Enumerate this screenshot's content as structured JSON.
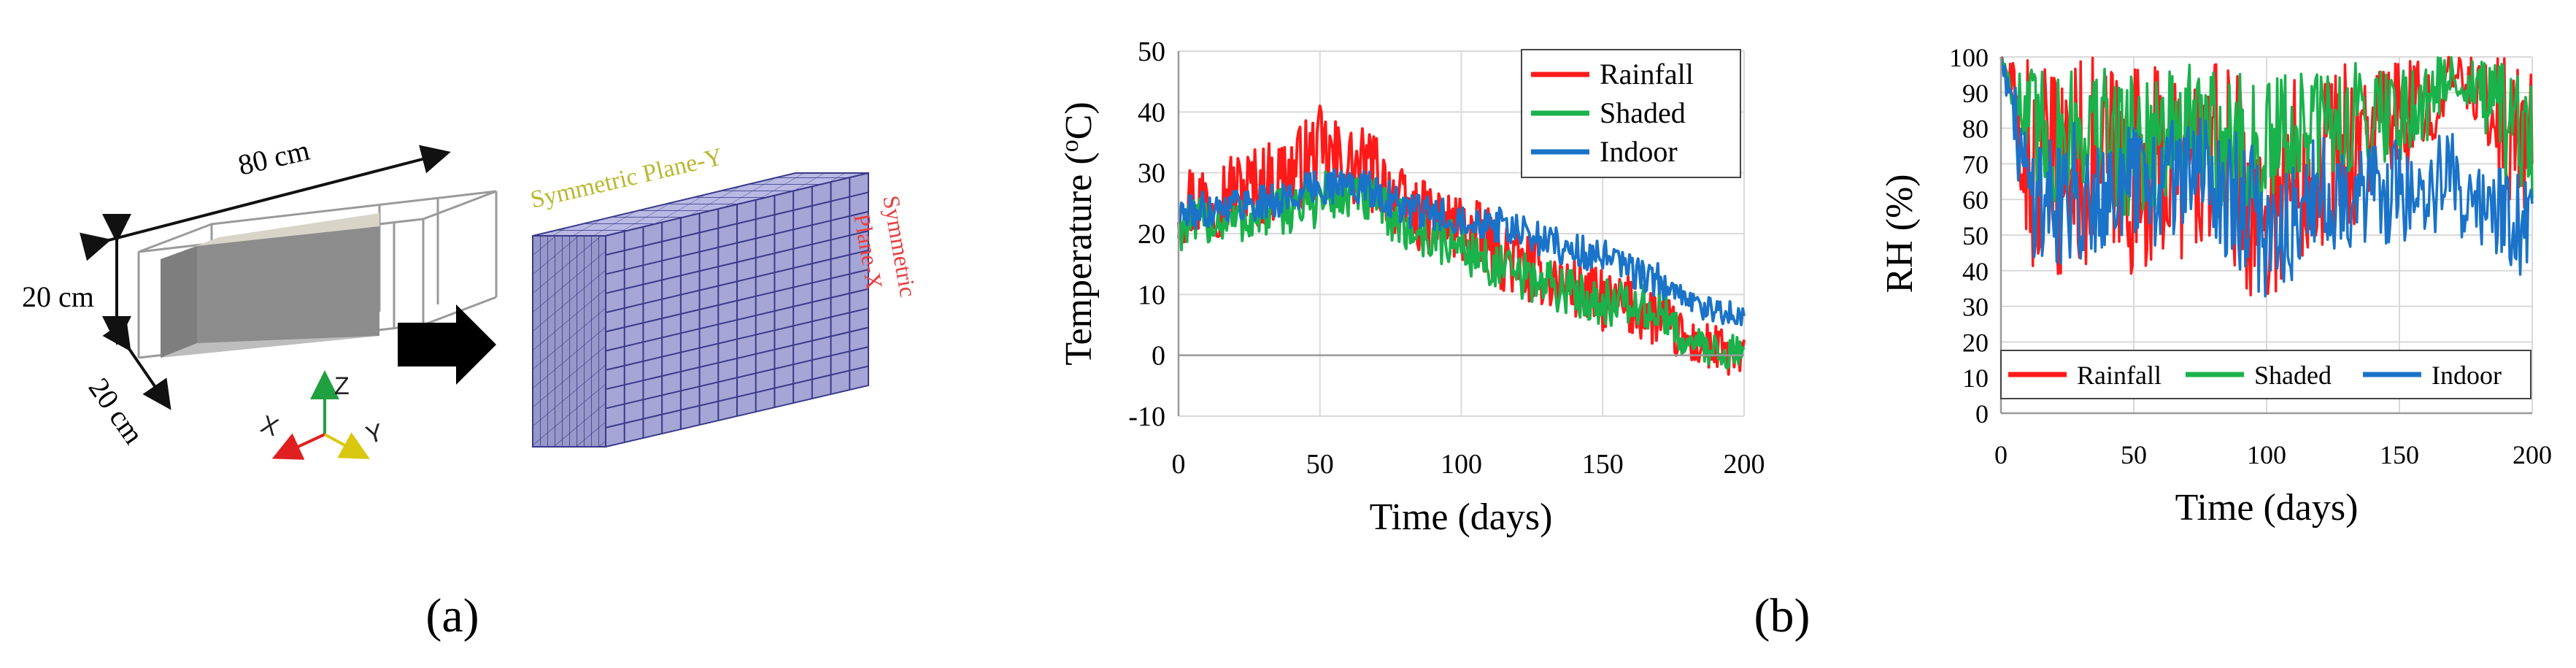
{
  "panel_a": {
    "label": "(a)",
    "dim_length": "80 cm",
    "dim_height": "20 cm",
    "dim_depth": "20 cm",
    "axis_x": "X",
    "axis_y": "Y",
    "axis_z": "Z",
    "plane_y_label": "Symmetric  Plane-Y",
    "plane_x_label_1": "Symmetric",
    "plane_x_label_2": "Plane-X",
    "colors": {
      "plane_y": "#b8b830",
      "plane_x": "#e84040",
      "mesh_face": "#a8a8d8",
      "mesh_line": "#3a3a8a",
      "solid": "#8a8a8a"
    }
  },
  "panel_b": {
    "label": "(b)"
  },
  "chart_data": [
    {
      "type": "line",
      "title": "",
      "xlabel": "Time (days)",
      "ylabel": "Temperature  (",
      "ylabel_sup": "o",
      "ylabel_unit": "C)",
      "xlim": [
        0,
        200
      ],
      "ylim": [
        -10,
        50
      ],
      "xticks": [
        0,
        50,
        100,
        150,
        200
      ],
      "yticks": [
        -10,
        0,
        10,
        20,
        30,
        40,
        50
      ],
      "grid": true,
      "legend_position": "top-right",
      "series": [
        {
          "name": "Rainfall",
          "color": "#ff1a1a",
          "x": [
            0,
            10,
            20,
            30,
            40,
            50,
            60,
            70,
            80,
            90,
            100,
            110,
            120,
            130,
            140,
            150,
            160,
            170,
            180,
            190,
            200
          ],
          "center": [
            25,
            26,
            27,
            28,
            30,
            33,
            31,
            30,
            24,
            22,
            21,
            18,
            15,
            13,
            11,
            9,
            8,
            6,
            2,
            1,
            -1
          ],
          "amplitude": [
            7,
            7,
            7,
            7,
            7,
            8,
            7,
            7,
            6,
            6,
            6,
            6,
            6,
            5,
            5,
            5,
            5,
            5,
            4,
            4,
            4
          ]
        },
        {
          "name": "Shaded",
          "color": "#1ab24b",
          "x": [
            0,
            10,
            20,
            30,
            40,
            50,
            60,
            70,
            80,
            90,
            100,
            110,
            120,
            130,
            140,
            150,
            160,
            170,
            180,
            190,
            200
          ],
          "center": [
            21,
            22,
            22,
            23,
            24,
            26,
            26,
            25,
            21,
            19,
            18,
            15,
            13,
            12,
            10,
            9,
            8,
            7,
            2,
            1,
            0
          ],
          "amplitude": [
            4,
            4,
            4,
            4,
            4,
            5,
            4,
            4,
            4,
            4,
            4,
            4,
            4,
            4,
            4,
            4,
            4,
            4,
            3,
            3,
            3
          ]
        },
        {
          "name": "Indoor",
          "color": "#1a73c8",
          "x": [
            0,
            10,
            20,
            30,
            40,
            50,
            60,
            70,
            80,
            90,
            100,
            110,
            120,
            130,
            140,
            150,
            160,
            170,
            180,
            190,
            200
          ],
          "center": [
            23,
            24,
            25,
            25,
            26,
            28,
            28,
            27,
            24,
            23,
            23,
            22,
            20,
            19,
            17,
            16,
            14,
            12,
            9,
            7,
            7
          ],
          "amplitude": [
            3,
            3,
            3,
            3,
            3,
            3,
            3,
            3,
            3,
            3,
            3,
            3,
            3,
            3,
            3,
            3,
            3,
            3,
            2,
            2,
            2
          ]
        }
      ]
    },
    {
      "type": "line",
      "title": "",
      "xlabel": "Time (days)",
      "ylabel": "RH (%)",
      "xlim": [
        0,
        200
      ],
      "ylim": [
        0,
        100
      ],
      "xticks": [
        0,
        50,
        100,
        150,
        200
      ],
      "yticks": [
        0,
        10,
        20,
        30,
        40,
        50,
        60,
        70,
        80,
        90,
        100
      ],
      "grid": true,
      "legend_position": "lower-center",
      "series": [
        {
          "name": "Rainfall",
          "color": "#ff1a1a",
          "x": [
            0,
            10,
            20,
            30,
            40,
            50,
            60,
            70,
            80,
            90,
            100,
            110,
            120,
            130,
            140,
            150,
            160,
            170,
            180,
            190,
            200
          ],
          "center": [
            100,
            70,
            65,
            70,
            72,
            68,
            70,
            70,
            70,
            68,
            55,
            68,
            72,
            75,
            80,
            82,
            85,
            95,
            90,
            80,
            75
          ],
          "amplitude": [
            0,
            30,
            30,
            30,
            28,
            30,
            28,
            28,
            28,
            30,
            30,
            28,
            25,
            25,
            20,
            18,
            15,
            5,
            10,
            20,
            20
          ]
        },
        {
          "name": "Shaded",
          "color": "#1ab24b",
          "x": [
            0,
            10,
            20,
            30,
            40,
            50,
            60,
            70,
            80,
            90,
            100,
            110,
            120,
            130,
            140,
            150,
            160,
            170,
            180,
            190,
            200
          ],
          "center": [
            100,
            80,
            75,
            80,
            78,
            75,
            78,
            80,
            78,
            75,
            72,
            78,
            80,
            82,
            85,
            85,
            88,
            95,
            90,
            80,
            75
          ],
          "amplitude": [
            0,
            20,
            20,
            18,
            20,
            22,
            20,
            18,
            20,
            22,
            22,
            20,
            18,
            16,
            15,
            14,
            12,
            5,
            10,
            18,
            18
          ]
        },
        {
          "name": "Indoor",
          "color": "#1a73c8",
          "x": [
            0,
            10,
            20,
            30,
            40,
            50,
            60,
            70,
            80,
            90,
            100,
            110,
            120,
            130,
            140,
            150,
            160,
            170,
            180,
            190,
            200
          ],
          "center": [
            100,
            65,
            60,
            62,
            65,
            62,
            65,
            68,
            65,
            60,
            50,
            55,
            60,
            62,
            60,
            62,
            62,
            65,
            60,
            55,
            50
          ],
          "amplitude": [
            0,
            20,
            20,
            20,
            18,
            20,
            18,
            15,
            18,
            20,
            20,
            18,
            18,
            15,
            15,
            15,
            15,
            15,
            15,
            15,
            15
          ]
        }
      ]
    }
  ]
}
